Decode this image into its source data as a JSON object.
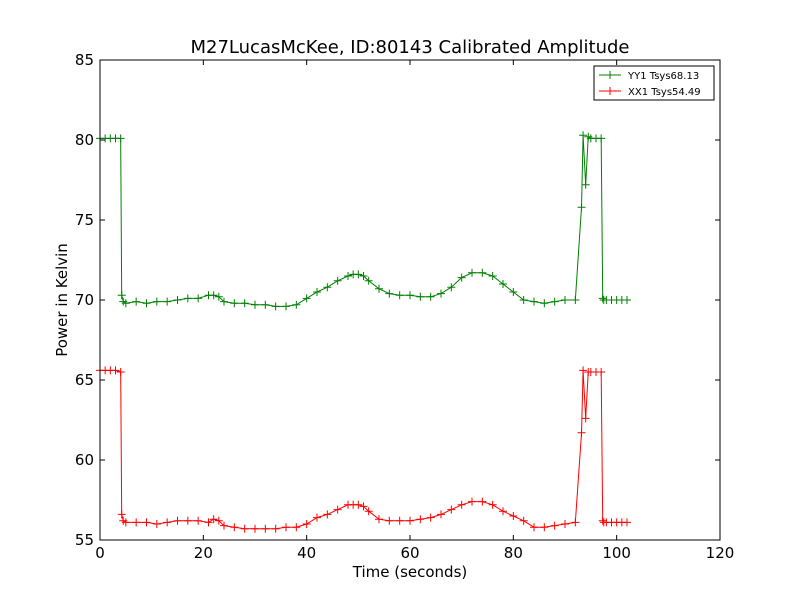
{
  "chart_data": {
    "type": "line",
    "title": "M27LucasMcKee, ID:80143 Calibrated Amplitude",
    "xlabel": "Time (seconds)",
    "ylabel": "Power in Kelvin",
    "xlim": [
      0,
      120
    ],
    "ylim": [
      55,
      85
    ],
    "xticks": [
      0,
      20,
      40,
      60,
      80,
      100,
      120
    ],
    "yticks": [
      55,
      60,
      65,
      70,
      75,
      80,
      85
    ],
    "grid": false,
    "legend_position": "top-right",
    "marker": "+",
    "series": [
      {
        "name": "YY1 Tsys68.13",
        "color": "#008000",
        "x": [
          0,
          1,
          2,
          3,
          4,
          4.2,
          4.5,
          5,
          7,
          9,
          11,
          13,
          15,
          17,
          19,
          21,
          22,
          23,
          24,
          26,
          28,
          30,
          32,
          34,
          36,
          38,
          40,
          42,
          44,
          46,
          48,
          49,
          50,
          51,
          52,
          54,
          56,
          58,
          60,
          62,
          64,
          66,
          68,
          70,
          72,
          74,
          76,
          78,
          80,
          82,
          84,
          86,
          88,
          90,
          92,
          93.2,
          93.5,
          94,
          94.5,
          95,
          96,
          97,
          97.3,
          97.5,
          98,
          99,
          100,
          101,
          102
        ],
        "values": [
          80.1,
          80.1,
          80.1,
          80.1,
          80.1,
          70.3,
          69.9,
          69.8,
          69.9,
          69.8,
          69.9,
          69.9,
          70.0,
          70.1,
          70.1,
          70.3,
          70.3,
          70.2,
          69.9,
          69.8,
          69.8,
          69.7,
          69.7,
          69.6,
          69.6,
          69.7,
          70.1,
          70.5,
          70.8,
          71.2,
          71.5,
          71.6,
          71.6,
          71.5,
          71.2,
          70.7,
          70.4,
          70.3,
          70.3,
          70.2,
          70.2,
          70.4,
          70.8,
          71.4,
          71.7,
          71.7,
          71.5,
          71.0,
          70.5,
          70.0,
          69.9,
          69.8,
          69.9,
          70.0,
          70.0,
          75.8,
          80.3,
          77.2,
          80.2,
          80.1,
          80.1,
          80.1,
          70.1,
          70.0,
          70.0,
          70.0,
          70.0,
          70.0,
          70.0
        ]
      },
      {
        "name": "XX1 Tsys54.49",
        "color": "#ff0000",
        "x": [
          0,
          1,
          2,
          3,
          4,
          4.2,
          4.5,
          5,
          7,
          9,
          11,
          13,
          15,
          17,
          19,
          21,
          22,
          23,
          24,
          26,
          28,
          30,
          32,
          34,
          36,
          38,
          40,
          42,
          44,
          46,
          48,
          49,
          50,
          51,
          52,
          54,
          56,
          58,
          60,
          62,
          64,
          66,
          68,
          70,
          72,
          74,
          76,
          78,
          80,
          82,
          84,
          86,
          88,
          90,
          92,
          93.2,
          93.5,
          94,
          94.5,
          95,
          96,
          97,
          97.3,
          97.5,
          98,
          99,
          100,
          101,
          102
        ],
        "values": [
          65.6,
          65.6,
          65.6,
          65.6,
          65.5,
          56.6,
          56.2,
          56.1,
          56.1,
          56.1,
          56.0,
          56.1,
          56.2,
          56.2,
          56.2,
          56.1,
          56.3,
          56.2,
          55.9,
          55.8,
          55.7,
          55.7,
          55.7,
          55.7,
          55.8,
          55.8,
          56.0,
          56.4,
          56.6,
          56.9,
          57.2,
          57.2,
          57.2,
          57.1,
          56.8,
          56.3,
          56.2,
          56.2,
          56.2,
          56.3,
          56.4,
          56.6,
          56.9,
          57.2,
          57.4,
          57.4,
          57.2,
          56.8,
          56.5,
          56.2,
          55.8,
          55.8,
          55.9,
          56.0,
          56.1,
          61.7,
          65.6,
          62.6,
          65.5,
          65.5,
          65.5,
          65.5,
          56.2,
          56.1,
          56.1,
          56.1,
          56.1,
          56.1,
          56.1
        ]
      }
    ]
  }
}
